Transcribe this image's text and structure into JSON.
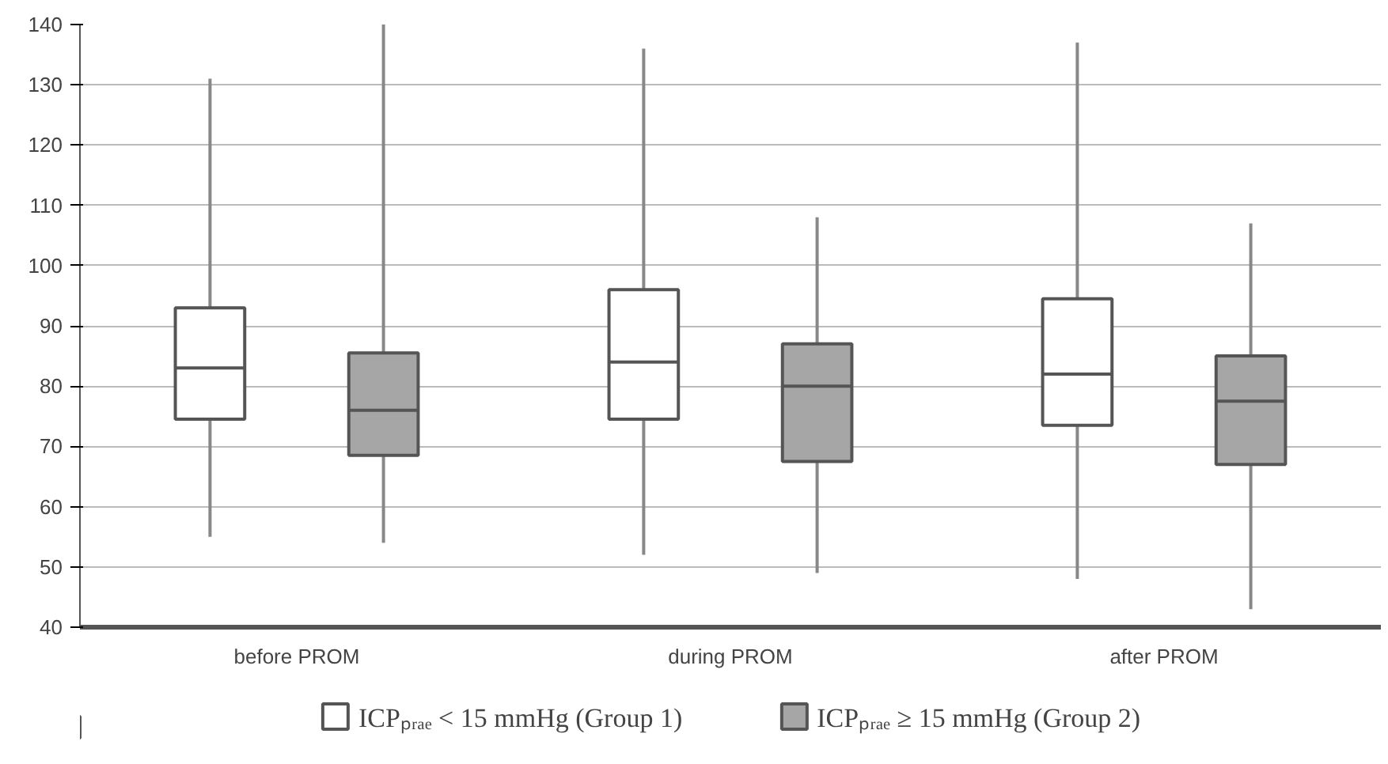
{
  "chart_data": {
    "type": "box",
    "categories": [
      "before PROM",
      "during PROM",
      "after PROM"
    ],
    "series": [
      {
        "name": "ICPₚᵣₐₑ < 15 mmHg (Group 1)",
        "color": "#ffffff",
        "boxes": [
          {
            "low": 55,
            "q1": 74.5,
            "median": 83,
            "q3": 93,
            "high": 131
          },
          {
            "low": 52,
            "q1": 74.5,
            "median": 84,
            "q3": 96,
            "high": 136
          },
          {
            "low": 48,
            "q1": 73.5,
            "median": 82,
            "q3": 94.5,
            "high": 137
          }
        ]
      },
      {
        "name": "ICPₚᵣₐₑ ≥ 15 mmHg (Group 2)",
        "color": "#a6a6a6",
        "boxes": [
          {
            "low": 54,
            "q1": 68.5,
            "median": 76,
            "q3": 85.5,
            "high": 140
          },
          {
            "low": 49,
            "q1": 67.5,
            "median": 80,
            "q3": 87,
            "high": 108
          },
          {
            "low": 43,
            "q1": 67,
            "median": 77.5,
            "q3": 85,
            "high": 107
          }
        ]
      }
    ],
    "ylim": [
      40,
      140
    ],
    "yticks": [
      40,
      50,
      60,
      70,
      80,
      90,
      100,
      110,
      120,
      130,
      140
    ],
    "grid": "y",
    "legend": "bottom"
  }
}
